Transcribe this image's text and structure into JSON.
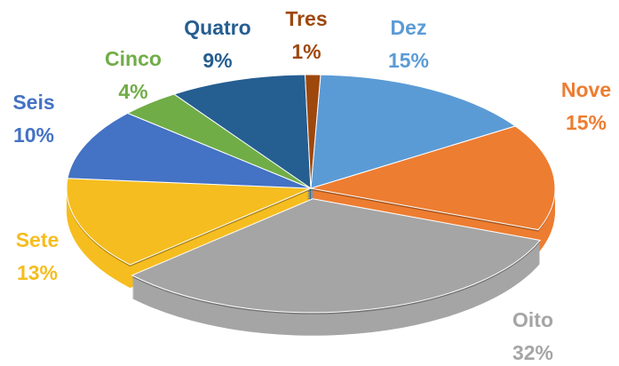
{
  "chart_data": {
    "type": "pie",
    "categories": [
      "Dez",
      "Nove",
      "Oito",
      "Sete",
      "Seis",
      "Cinco",
      "Quatro",
      "Tres"
    ],
    "values": [
      15,
      15,
      32,
      13,
      10,
      4,
      9,
      1
    ],
    "value_labels": [
      "15%",
      "15%",
      "32%",
      "13%",
      "10%",
      "4%",
      "9%",
      "1%"
    ],
    "colors": [
      "#5b9bd5",
      "#ed7d31",
      "#a5a5a5",
      "#f5bd1f",
      "#4472c4",
      "#70ad47",
      "#255e91",
      "#9e480e"
    ]
  }
}
